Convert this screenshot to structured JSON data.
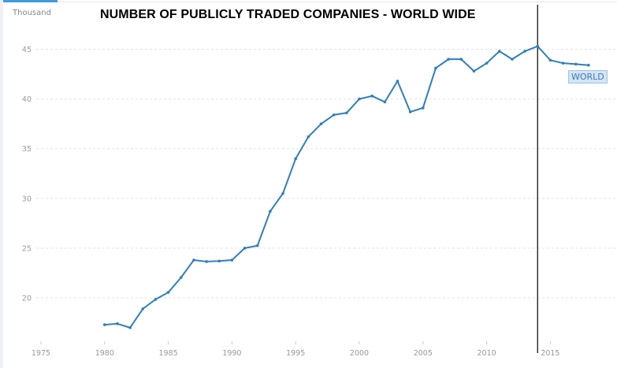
{
  "chart_data": {
    "type": "line",
    "title": "NUMBER OF PUBLICLY TRADED COMPANIES - WORLD WIDE",
    "ylabel": "Thousand",
    "xlabel": "",
    "xlim": [
      1975,
      2020
    ],
    "ylim": [
      15,
      46.5
    ],
    "x_ticks": [
      "1975",
      "1980",
      "1985",
      "1990",
      "1995",
      "2000",
      "2005",
      "2010",
      "2015"
    ],
    "y_ticks": [
      "20",
      "25",
      "30",
      "35",
      "40",
      "45"
    ],
    "grid": "horizontal dashed",
    "legend_placement": "right end of line",
    "marker_line_year": 2014,
    "color": "#2f7fbd",
    "series": [
      {
        "name": "WORLD",
        "x": [
          1980,
          1981,
          1982,
          1983,
          1984,
          1985,
          1986,
          1987,
          1988,
          1989,
          1990,
          1991,
          1992,
          1993,
          1994,
          1995,
          1996,
          1997,
          1998,
          1999,
          2000,
          2001,
          2002,
          2003,
          2004,
          2005,
          2006,
          2007,
          2008,
          2009,
          2010,
          2011,
          2012,
          2013,
          2014,
          2015,
          2016,
          2017,
          2018
        ],
        "values": [
          17.3,
          17.4,
          17.0,
          18.9,
          19.85,
          20.55,
          22.05,
          23.8,
          23.65,
          23.7,
          23.8,
          25.0,
          25.25,
          28.7,
          30.5,
          34.0,
          36.2,
          37.5,
          38.4,
          38.6,
          40.0,
          40.3,
          39.7,
          41.8,
          38.7,
          39.1,
          43.1,
          44.0,
          44.0,
          42.8,
          43.6,
          44.8,
          44.0,
          44.8,
          45.3,
          43.9,
          43.6,
          43.5,
          43.4
        ]
      }
    ]
  }
}
